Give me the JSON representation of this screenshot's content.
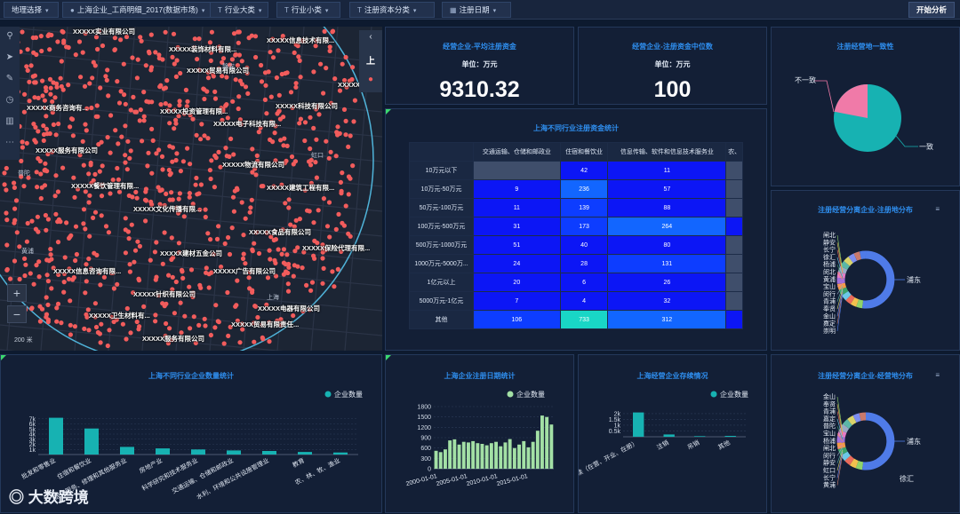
{
  "toolbar": {
    "region_select": "地理选择",
    "data_source": "上海企业_工商明细_2017(数据市场)",
    "industry_major": "行业大类",
    "industry_minor": "行业小类",
    "capital_category": "注册资本分类",
    "reg_date": "注册日期",
    "analyze_button": "开始分析"
  },
  "map": {
    "scale_label": "200 米",
    "side_up_label": "上",
    "company_labels": [
      "XXXXX实业有限公司",
      "XXXXX装饰材料有限...",
      "XXXXX信息技术有限...",
      "XXXXX贸易有限公司",
      "XXXXX投资管理有限...",
      "XXXXX科技有限公司",
      "XXXXX电子科技有限...",
      "XXXXX服务有限公司",
      "XXXXX餐饮管理有限...",
      "XXXXX物流有限公司",
      "XXXXX建筑工程有限...",
      "XXXXX文化传播有限...",
      "XXXXX食品有限公司",
      "XXXXX保险代理有限...",
      "XXXXX建材五金公司",
      "XXXXX信息咨询有限...",
      "XXXXX广告有限公司",
      "XXXXX针织有限公司",
      "XXXXX电器有限公司",
      "XXXXX卫生材料有...",
      "XXXXX贸易有限责任...",
      "XXXXX服务有限公司",
      "XXXXX商务咨询有...",
      "XXXXX石油化工有限..."
    ],
    "place_labels": [
      "黄浦",
      "静安",
      "上海",
      "普陀",
      "虹口"
    ]
  },
  "kpi_avg": {
    "title": "经营企业-平均注册资金",
    "unit": "单位：万元",
    "value": "9310.32"
  },
  "kpi_median": {
    "title": "经营企业-注册资金中位数",
    "unit": "单位：万元",
    "value": "100"
  },
  "pie_consistency": {
    "title": "注册经营地一致性",
    "label_a": "不一致",
    "label_b": "一致"
  },
  "pivot": {
    "title": "上海不同行业注册资金统计",
    "columns": [
      "交通运输、仓储和邮政业",
      "住宿和餐饮业",
      "信息传输、软件和信息技术服务业",
      "农、"
    ],
    "rows": [
      {
        "label": "10万元以下",
        "cells": [
          "",
          "42",
          "11",
          ""
        ]
      },
      {
        "label": "10万元-50万元",
        "cells": [
          "9",
          "236",
          "57",
          ""
        ]
      },
      {
        "label": "50万元-100万元",
        "cells": [
          "11",
          "139",
          "88",
          ""
        ]
      },
      {
        "label": "100万元-500万元",
        "cells": [
          "31",
          "173",
          "264",
          ""
        ]
      },
      {
        "label": "500万元-1000万元",
        "cells": [
          "51",
          "40",
          "80",
          ""
        ]
      },
      {
        "label": "1000万元-5000万...",
        "cells": [
          "24",
          "28",
          "131",
          ""
        ]
      },
      {
        "label": "1亿元以上",
        "cells": [
          "20",
          "6",
          "26",
          ""
        ]
      },
      {
        "label": "5000万元-1亿元",
        "cells": [
          "7",
          "4",
          "32",
          ""
        ]
      },
      {
        "label": "其他",
        "cells": [
          "106",
          "733",
          "312",
          ""
        ]
      }
    ]
  },
  "donut_reg": {
    "title": "注册经营分离企业-注册地分布",
    "main_label": "浦东",
    "labels": [
      "闸北",
      "静安",
      "长宁",
      "徐汇",
      "杨浦",
      "闵北",
      "黄浦",
      "宝山",
      "闵行",
      "青浦",
      "奉贤",
      "金山",
      "嘉定",
      "崇明"
    ]
  },
  "donut_op": {
    "title": "注册经营分离企业-经营地分布",
    "main_label": "浦东",
    "second_label": "徐汇",
    "labels": [
      "金山",
      "奉贤",
      "青浦",
      "嘉定",
      "普陀",
      "宝山",
      "杨浦",
      "闸北",
      "闵行",
      "静安",
      "虹口",
      "长宁",
      "黄浦"
    ]
  },
  "chart_data": [
    {
      "type": "bar",
      "title": "上海不同行业企业数量统计",
      "legend": "企业数量",
      "categories": [
        "批发和零售业",
        "住宿和餐饮业",
        "居民服务、修理和其他服务业",
        "房地产业",
        "科学研究和技术服务业",
        "交通运输、仓储和邮政业",
        "水利、环境和公共设施管理业",
        "教育",
        "农、林、牧、渔业"
      ],
      "values": [
        7200,
        5100,
        1500,
        1200,
        1000,
        800,
        700,
        500,
        400
      ],
      "yticks": [
        "1k",
        "2k",
        "3k",
        "4k",
        "5k",
        "6k",
        "7k"
      ],
      "ylim": [
        0,
        8000
      ],
      "color": "#17b2b2"
    },
    {
      "type": "bar",
      "title": "上海企业注册日期统计",
      "legend": "企业数量",
      "x_ticks": [
        "2000-01-01",
        "2005-01-01",
        "2010-01-01",
        "2015-01-01"
      ],
      "values": [
        520,
        480,
        560,
        820,
        850,
        700,
        780,
        760,
        800,
        740,
        720,
        680,
        740,
        780,
        650,
        760,
        860,
        600,
        700,
        800,
        620,
        780,
        1100,
        1540,
        1500,
        1280
      ],
      "yticks": [
        "0",
        "300",
        "600",
        "900",
        "1200",
        "1500",
        "1800"
      ],
      "ylim": [
        0,
        1800
      ],
      "color": "#a3e0a5"
    },
    {
      "type": "bar",
      "title": "上海经营企业存续情况",
      "legend": "企业数量",
      "categories": [
        "存续（在营、开业、在册）",
        "注销",
        "吊销",
        "其他"
      ],
      "values": [
        2100,
        200,
        50,
        80
      ],
      "yticks": [
        "0.5k",
        "1k",
        "1.5k",
        "2k"
      ],
      "ylim": [
        0,
        2300
      ],
      "color": "#17b2b2"
    }
  ],
  "colors": {
    "accent": "#2f8ff0",
    "teal": "#17b2b2",
    "pink": "#f07aa8",
    "panel": "#131f36"
  }
}
